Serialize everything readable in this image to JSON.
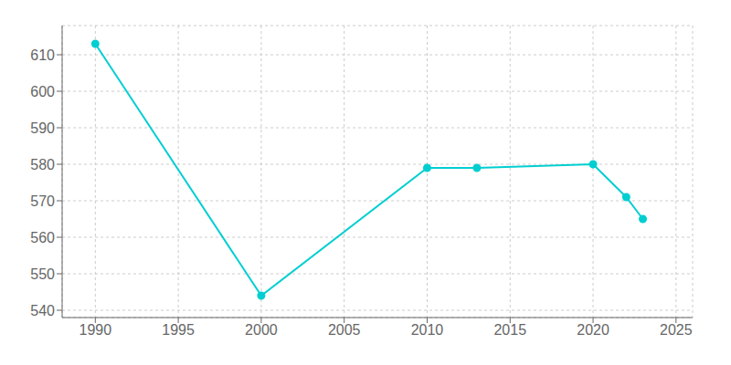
{
  "chart_data": {
    "type": "line",
    "x": [
      1990,
      2000,
      2010,
      2013,
      2020,
      2022,
      2023
    ],
    "values": [
      613,
      544,
      579,
      579,
      580,
      571,
      565
    ],
    "color": "#00CED1",
    "marker": "circle",
    "xlim": [
      1988,
      2026
    ],
    "ylim": [
      538,
      618
    ],
    "xticks": [
      1990,
      1995,
      2000,
      2005,
      2010,
      2015,
      2020,
      2025
    ],
    "yticks": [
      540,
      550,
      560,
      570,
      580,
      590,
      600,
      610
    ],
    "grid": true
  }
}
